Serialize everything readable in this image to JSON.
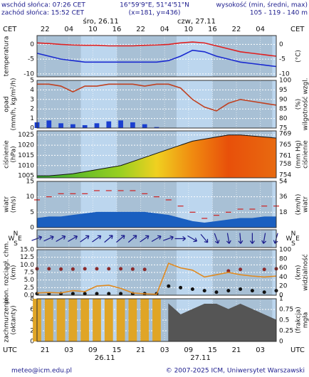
{
  "header": {
    "sunrise": "wschód słońca: 07:26 CET",
    "sunset": "zachód słońca: 15:52 CET",
    "coords": "16°59'9\"E, 51°4'51\"N",
    "grid": "(x=181, y=436)",
    "elevation_title": "wysokość (min, średni, max)",
    "elevation": "105 - 119 - 140 m"
  },
  "time": {
    "xlim": [
      0,
      60
    ],
    "cet": "CET",
    "utc": "UTC",
    "xticks": [
      {
        "value": 2,
        "label": "22"
      },
      {
        "value": 8,
        "label": "04"
      },
      {
        "value": 14,
        "label": "10"
      },
      {
        "value": 20,
        "label": "16"
      },
      {
        "value": 26,
        "label": "22"
      },
      {
        "value": 32,
        "label": "04"
      },
      {
        "value": 38,
        "label": "10"
      },
      {
        "value": 44,
        "label": "16"
      },
      {
        "value": 50,
        "label": "22"
      },
      {
        "value": 56,
        "label": "04"
      }
    ],
    "utc_ticks": [
      {
        "value": 2,
        "label": "21"
      },
      {
        "value": 8,
        "label": "03"
      },
      {
        "value": 14,
        "label": "09"
      },
      {
        "value": 20,
        "label": "15"
      },
      {
        "value": 26,
        "label": "21"
      },
      {
        "value": 32,
        "label": "03"
      },
      {
        "value": 38,
        "label": "09"
      },
      {
        "value": 44,
        "label": "15"
      },
      {
        "value": 50,
        "label": "21"
      },
      {
        "value": 56,
        "label": "03"
      }
    ],
    "top_dates": [
      {
        "value": 16,
        "label": "śro, 26.11"
      },
      {
        "value": 40,
        "label": "czw, 27.11"
      }
    ],
    "bottom_dates": [
      {
        "value": 17,
        "label": "26.11"
      },
      {
        "value": 41,
        "label": "27.11"
      }
    ]
  },
  "chart_data": [
    {
      "type": "line",
      "ylabel": [
        "temperatura"
      ],
      "y2label": [
        "(°C)"
      ],
      "ylim": [
        -11,
        3
      ],
      "yticks": [
        0,
        -5,
        -10
      ],
      "y2lim": [
        -11,
        3
      ],
      "y2ticks": [
        0,
        -5,
        -10
      ],
      "x": [
        0,
        3,
        6,
        9,
        12,
        15,
        18,
        21,
        24,
        27,
        30,
        33,
        36,
        39,
        42,
        45,
        48,
        51,
        54,
        57,
        60
      ],
      "series": [
        {
          "type": "line",
          "color": "#e02020",
          "values": [
            0.5,
            0.3,
            0,
            -0.2,
            -0.3,
            -0.3,
            -0.5,
            -0.5,
            -0.5,
            -0.3,
            -0.2,
            0,
            0.5,
            0.8,
            0.5,
            -0.5,
            -1.5,
            -2.5,
            -3,
            -3.5,
            -4
          ]
        },
        {
          "type": "line",
          "color": "#1a2ad0",
          "values": [
            -3,
            -4,
            -5,
            -5.5,
            -6,
            -6,
            -6,
            -6,
            -6,
            -6,
            -6,
            -5.5,
            -4,
            -2,
            -2.5,
            -4,
            -5,
            -6,
            -6.5,
            -7,
            -7.5
          ]
        }
      ]
    },
    {
      "type": "bar",
      "ylabel": [
        "opad",
        "(mm/h, kg/m²/h)"
      ],
      "y2label": [
        "(%)",
        "wilgotność wzgl."
      ],
      "ylim": [
        0,
        5
      ],
      "yticks": [
        0,
        1,
        2,
        3,
        4,
        5
      ],
      "y2lim": [
        75,
        100
      ],
      "y2ticks": [
        75,
        80,
        85,
        90,
        95,
        100
      ],
      "x": [
        0,
        3,
        6,
        9,
        12,
        15,
        18,
        21,
        24,
        27,
        30,
        33,
        36,
        39,
        42,
        45,
        48,
        51,
        54,
        57,
        60
      ],
      "series": [
        {
          "type": "bar",
          "color": "#1a3fd0",
          "values": [
            0.6,
            0.8,
            0.5,
            0.4,
            0.3,
            0.5,
            0.7,
            0.8,
            0.6,
            0.4,
            0.1,
            0,
            0,
            0,
            0,
            0,
            0,
            0,
            0,
            0,
            0
          ]
        },
        {
          "type": "line",
          "axis": "y2",
          "color": "#c04020",
          "values": [
            98,
            98,
            97,
            94,
            97,
            97,
            98,
            98,
            98,
            97,
            98,
            98,
            96,
            90,
            86,
            84,
            88,
            90,
            89,
            88,
            87
          ]
        }
      ]
    },
    {
      "type": "area",
      "ylabel": [
        "ciśnienie",
        "(hPa)"
      ],
      "y2label": [
        "(mm Hg)",
        "ciśnienie"
      ],
      "ylim": [
        1004,
        1027
      ],
      "yticks": [
        1005,
        1010,
        1015,
        1020,
        1025
      ],
      "y2lim": [
        753,
        770
      ],
      "y2ticks": [
        754,
        758,
        761,
        765,
        769
      ],
      "x": [
        0,
        3,
        6,
        9,
        12,
        15,
        18,
        21,
        24,
        27,
        30,
        33,
        36,
        39,
        42,
        45,
        48,
        51,
        54,
        57,
        60
      ],
      "series": [
        {
          "type": "area",
          "color": "#111111",
          "values": [
            1005,
            1005,
            1005.5,
            1006,
            1007,
            1008,
            1009,
            1010,
            1012,
            1014,
            1016,
            1018,
            1020,
            1022,
            1023,
            1024,
            1025,
            1025,
            1024.5,
            1024,
            1023.5
          ]
        }
      ]
    },
    {
      "type": "area",
      "ylabel": [
        "wiatr",
        "(m/s)"
      ],
      "y2label": [
        "(km/h)",
        "wiatr"
      ],
      "ylim": [
        0,
        15
      ],
      "yticks": [
        0,
        5,
        10,
        15
      ],
      "y2lim": [
        0,
        54
      ],
      "y2ticks": [
        18,
        36,
        54
      ],
      "x": [
        0,
        3,
        6,
        9,
        12,
        15,
        18,
        21,
        24,
        27,
        30,
        33,
        36,
        39,
        42,
        45,
        48,
        51,
        54,
        57,
        60
      ],
      "series": [
        {
          "type": "area",
          "color": "#1a5fc0",
          "values": [
            3,
            3.5,
            3.5,
            4,
            4.5,
            5,
            5,
            5,
            5,
            5,
            4.5,
            4,
            3,
            2,
            1.5,
            2,
            2.5,
            3,
            3,
            3.5,
            3.5
          ]
        },
        {
          "type": "dash",
          "color": "#d02020",
          "values": [
            9,
            10,
            11,
            11,
            11,
            12,
            12,
            12,
            12,
            11,
            10,
            9,
            7,
            5,
            3,
            4,
            5,
            6,
            6,
            7,
            7
          ]
        }
      ]
    },
    {
      "type": "arrows",
      "compass": [
        "N",
        "E",
        "S",
        "W"
      ],
      "ylim": [
        0,
        1
      ],
      "x": [
        0,
        3,
        6,
        9,
        12,
        15,
        18,
        21,
        24,
        27,
        30,
        33,
        36,
        39,
        42,
        45,
        48,
        51,
        54,
        57,
        60
      ],
      "series": [
        {
          "type": "arrows",
          "color": "#1a1a8c",
          "values": [
            250,
            245,
            240,
            240,
            235,
            235,
            230,
            230,
            230,
            235,
            240,
            250,
            270,
            300,
            320,
            340,
            350,
            355,
            0,
            10,
            15
          ]
        }
      ]
    },
    {
      "type": "scatter",
      "ylabel": [
        "pion. rozciągł. chm.",
        "(km)"
      ],
      "y2label": [
        "(km)",
        "widzialność"
      ],
      "ylim": [
        0,
        15
      ],
      "yticks": [
        {
          "value": 0,
          "label": "0.0"
        },
        {
          "value": 2.5,
          "label": "2.5"
        },
        {
          "value": 5,
          "label": "5.0"
        },
        {
          "value": 7.5,
          "label": "7.5"
        },
        {
          "value": 10,
          "label": "10.0"
        },
        {
          "value": 12.5,
          "label": "12.5"
        },
        {
          "value": 15,
          "label": "15.0"
        }
      ],
      "y2lim": [
        0,
        100
      ],
      "y2ticks": [
        0,
        20,
        40,
        60,
        80,
        100
      ],
      "x": [
        0,
        3,
        6,
        9,
        12,
        15,
        18,
        21,
        24,
        27,
        30,
        33,
        36,
        39,
        42,
        45,
        48,
        51,
        54,
        57,
        60
      ],
      "series": [
        {
          "type": "scatter",
          "color": "#8b2a2a",
          "values": [
            8.7,
            8.7,
            8.6,
            8.6,
            8.7,
            8.7,
            8.7,
            8.7,
            8.6,
            8.5,
            null,
            null,
            null,
            null,
            null,
            null,
            8,
            8.5,
            null,
            8.5,
            8.7
          ]
        },
        {
          "type": "scatter",
          "color": "#111111",
          "values": [
            0.5,
            0.5,
            0.5,
            0.5,
            0.5,
            0.5,
            0.5,
            0.5,
            0.5,
            0.5,
            0.5,
            3,
            2.5,
            2,
            1.5,
            1,
            1.5,
            2,
            1.5,
            1,
            1.5
          ]
        },
        {
          "type": "line",
          "axis": "y2",
          "color": "#e08a20",
          "values": [
            5,
            6,
            5,
            10,
            8,
            20,
            22,
            15,
            5,
            3,
            2,
            70,
            60,
            55,
            40,
            45,
            50,
            45,
            42,
            40,
            42
          ]
        }
      ]
    },
    {
      "type": "bar",
      "ylabel": [
        "zachmurzenie",
        "(oktanty)"
      ],
      "y2label": [
        "(frakcja)",
        "mgła"
      ],
      "ylim": [
        0,
        8
      ],
      "yticks": [
        0,
        2,
        4,
        6,
        8
      ],
      "y2lim": [
        0,
        1
      ],
      "y2ticks": [
        0,
        0.25,
        0.5,
        0.75,
        1
      ],
      "x": [
        0,
        3,
        6,
        9,
        12,
        15,
        18,
        21,
        24,
        27,
        30,
        33,
        36,
        39,
        42,
        45,
        48,
        51,
        54,
        57,
        60
      ],
      "series": [
        {
          "type": "bar",
          "color": "#e0a526",
          "values": [
            8,
            8,
            8,
            8,
            8,
            8,
            8,
            8,
            8,
            8,
            8,
            null,
            null,
            null,
            null,
            null,
            null,
            null,
            null,
            null,
            null
          ]
        },
        {
          "type": "area",
          "color": "#555555",
          "values": [
            null,
            null,
            null,
            null,
            null,
            null,
            null,
            null,
            null,
            null,
            null,
            7,
            5,
            6,
            7,
            7,
            6,
            7,
            6,
            5,
            4
          ]
        }
      ]
    }
  ],
  "footer": {
    "email": "meteo@icm.edu.pl",
    "copyright": "© 2007-2025 ICM, Uniwersytet Warszawski"
  }
}
